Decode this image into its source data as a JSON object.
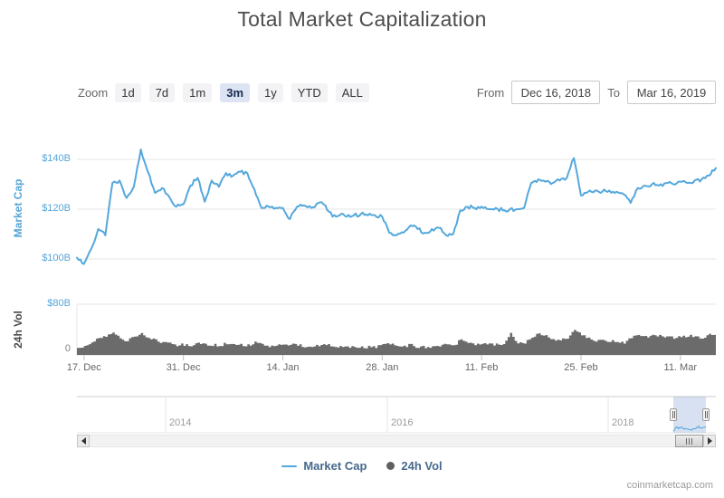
{
  "title": "Total Market Capitalization",
  "range_selector": {
    "zoom_label": "Zoom",
    "buttons": [
      {
        "label": "1d",
        "selected": false
      },
      {
        "label": "7d",
        "selected": false
      },
      {
        "label": "1m",
        "selected": false
      },
      {
        "label": "3m",
        "selected": true
      },
      {
        "label": "1y",
        "selected": false
      },
      {
        "label": "YTD",
        "selected": false
      },
      {
        "label": "ALL",
        "selected": false
      }
    ],
    "from_label": "From",
    "from_value": "Dec 16, 2018",
    "to_label": "To",
    "to_value": "Mar 16, 2019"
  },
  "market_cap_axis": {
    "title": "Market Cap",
    "tick_labels": [
      "$140B",
      "$120B",
      "$100B"
    ]
  },
  "volume_axis": {
    "title": "24h Vol",
    "tick_labels": [
      "$80B",
      "0"
    ]
  },
  "x_axis": {
    "labels": [
      "17. Dec",
      "31. Dec",
      "14. Jan",
      "28. Jan",
      "11. Feb",
      "25. Feb",
      "11. Mar"
    ],
    "tick_days": [
      1,
      15,
      29,
      43,
      57,
      71,
      85
    ]
  },
  "navigator": {
    "year_labels": [
      "2014",
      "2016",
      "2018"
    ]
  },
  "legend": [
    {
      "label": "Market Cap",
      "marker": "line",
      "color": "#54a8dc"
    },
    {
      "label": "24h Vol",
      "marker": "circle",
      "color": "#5f6062"
    }
  ],
  "attribution": "coinmarketcap.com",
  "colors": {
    "market_cap_line": "#54a8dc",
    "volume_fill": "#6b6b6b",
    "axis_label_blue": "#55a5d9",
    "grid": "#e6e6e6",
    "axis_line": "#d8d8d8",
    "tick": "#c0c0c0",
    "navigator_outline": "#cccccc",
    "navigator_mask": "rgba(116,149,206,0.28)"
  },
  "chart_data": {
    "type": "line",
    "title": "Total Market Capitalization",
    "x_start": "2018-12-16",
    "x_end": "2019-03-16",
    "interval": "daily",
    "x_tick_labels": [
      "17. Dec",
      "31. Dec",
      "14. Jan",
      "28. Jan",
      "11. Feb",
      "25. Feb",
      "11. Mar"
    ],
    "grid": "horizontal-only",
    "legend_position": "bottom",
    "series": [
      {
        "name": "Market Cap",
        "type": "line",
        "unit": "USD billions",
        "ylim": [
          95,
          150
        ],
        "y_tick_labels": [
          "$100B",
          "$120B",
          "$140B"
        ],
        "values": [
          100.5,
          98.0,
          104.0,
          112.0,
          109.5,
          130.5,
          131.5,
          124.5,
          129.0,
          144.0,
          135.0,
          126.5,
          128.5,
          125.0,
          121.0,
          122.0,
          129.5,
          132.5,
          123.0,
          131.5,
          129.0,
          134.5,
          133.5,
          135.0,
          134.5,
          128.0,
          120.5,
          121.0,
          120.5,
          120.5,
          116.0,
          121.0,
          121.5,
          120.5,
          122.5,
          121.5,
          117.0,
          117.5,
          117.0,
          117.5,
          118.0,
          117.5,
          117.5,
          117.0,
          110.5,
          109.5,
          110.5,
          113.5,
          112.0,
          110.5,
          112.0,
          112.5,
          109.5,
          110.0,
          119.5,
          121.0,
          120.5,
          121.0,
          120.0,
          120.5,
          119.5,
          120.0,
          120.0,
          120.5,
          130.5,
          132.0,
          131.0,
          130.5,
          131.5,
          132.5,
          140.5,
          125.5,
          127.0,
          127.5,
          127.0,
          127.5,
          127.0,
          126.0,
          122.5,
          128.5,
          129.5,
          130.0,
          129.5,
          130.5,
          130.0,
          131.0,
          130.5,
          131.5,
          132.0,
          133.5,
          136.5
        ]
      },
      {
        "name": "24h Vol",
        "type": "area",
        "unit": "USD billions",
        "ylim": [
          0,
          80
        ],
        "y_tick_labels": [
          "0",
          "$80B"
        ],
        "values": [
          12,
          14,
          20,
          26,
          30,
          35,
          27,
          22,
          29,
          33,
          27,
          23,
          20,
          17,
          16,
          16,
          14,
          17,
          16,
          15,
          16,
          17,
          15,
          16,
          15,
          19,
          17,
          14,
          13,
          17,
          16,
          15,
          14,
          15,
          16,
          16,
          13,
          13,
          13,
          13,
          13,
          12,
          13,
          19,
          17,
          15,
          15,
          15,
          13,
          13,
          14,
          15,
          16,
          15,
          25,
          18,
          17,
          16,
          17,
          16,
          15,
          33,
          19,
          19,
          29,
          35,
          29,
          25,
          25,
          26,
          38,
          32,
          26,
          23,
          25,
          22,
          20,
          20,
          26,
          32,
          29,
          30,
          32,
          29,
          28,
          29,
          30,
          29,
          28,
          32,
          35
        ]
      }
    ]
  }
}
